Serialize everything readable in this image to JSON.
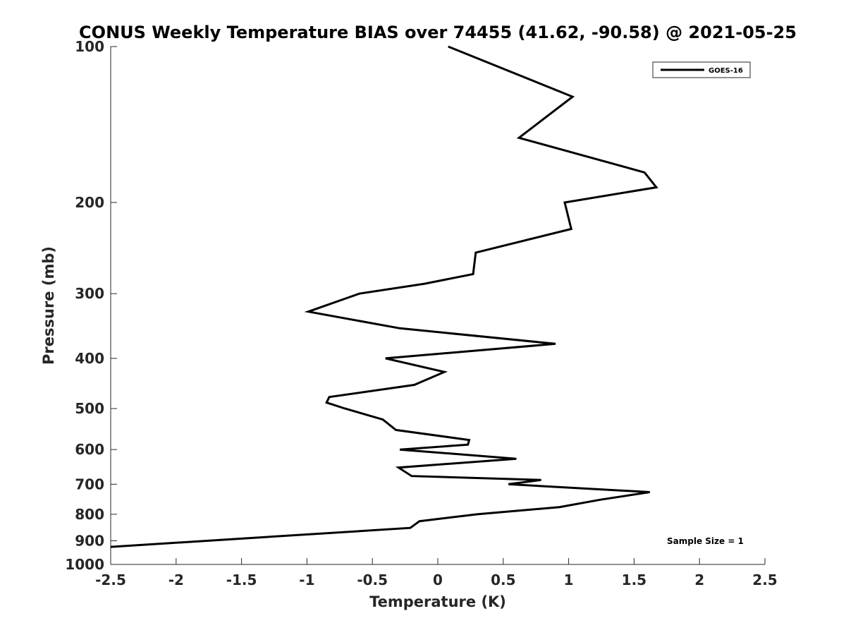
{
  "chart_data": {
    "type": "line",
    "title": "CONUS Weekly Temperature BIAS over 74455 (41.62, -90.58) @ 2021-05-25",
    "xlabel": "Temperature (K)",
    "ylabel": "Pressure (mb)",
    "xlim": [
      -2.5,
      2.5
    ],
    "ylim": [
      100,
      1000
    ],
    "y_scale": "log",
    "y_reversed": true,
    "grid": false,
    "legend_position": "top-right",
    "x_ticks": [
      -2.5,
      -2,
      -1.5,
      -1,
      -0.5,
      0,
      0.5,
      1,
      1.5,
      2,
      2.5
    ],
    "x_tick_labels": [
      "-2.5",
      "-2",
      "-1.5",
      "-1",
      "-0.5",
      "0",
      "0.5",
      "1",
      "1.5",
      "2",
      "2.5"
    ],
    "y_ticks": [
      100,
      200,
      300,
      400,
      500,
      600,
      700,
      800,
      900,
      1000
    ],
    "y_tick_labels": [
      "100",
      "200",
      "300",
      "400",
      "500",
      "600",
      "700",
      "800",
      "900",
      "1000"
    ],
    "annotation": "Sample Size = 1",
    "series": [
      {
        "name": "GOES-16",
        "color": "#000000",
        "points": [
          {
            "x": 0.08,
            "y": 100
          },
          {
            "x": 1.03,
            "y": 125
          },
          {
            "x": 0.62,
            "y": 150
          },
          {
            "x": 1.58,
            "y": 175
          },
          {
            "x": 1.67,
            "y": 187
          },
          {
            "x": 0.97,
            "y": 200
          },
          {
            "x": 1.02,
            "y": 225
          },
          {
            "x": 0.29,
            "y": 250
          },
          {
            "x": 0.27,
            "y": 275
          },
          {
            "x": -0.1,
            "y": 287
          },
          {
            "x": -0.6,
            "y": 300
          },
          {
            "x": -0.99,
            "y": 325
          },
          {
            "x": -0.29,
            "y": 350
          },
          {
            "x": 0.9,
            "y": 375
          },
          {
            "x": -0.4,
            "y": 400
          },
          {
            "x": 0.05,
            "y": 425
          },
          {
            "x": -0.18,
            "y": 450
          },
          {
            "x": -0.83,
            "y": 475
          },
          {
            "x": -0.85,
            "y": 487
          },
          {
            "x": -0.71,
            "y": 500
          },
          {
            "x": -0.42,
            "y": 525
          },
          {
            "x": -0.32,
            "y": 550
          },
          {
            "x": 0.24,
            "y": 575
          },
          {
            "x": 0.23,
            "y": 587
          },
          {
            "x": -0.29,
            "y": 600
          },
          {
            "x": 0.6,
            "y": 625
          },
          {
            "x": -0.3,
            "y": 650
          },
          {
            "x": -0.2,
            "y": 675
          },
          {
            "x": 0.79,
            "y": 687
          },
          {
            "x": 0.54,
            "y": 700
          },
          {
            "x": 1.62,
            "y": 725
          },
          {
            "x": 1.24,
            "y": 750
          },
          {
            "x": 0.93,
            "y": 775
          },
          {
            "x": 0.3,
            "y": 800
          },
          {
            "x": -0.14,
            "y": 825
          },
          {
            "x": -0.21,
            "y": 850
          },
          {
            "x": -2.5,
            "y": 925
          }
        ]
      }
    ]
  }
}
